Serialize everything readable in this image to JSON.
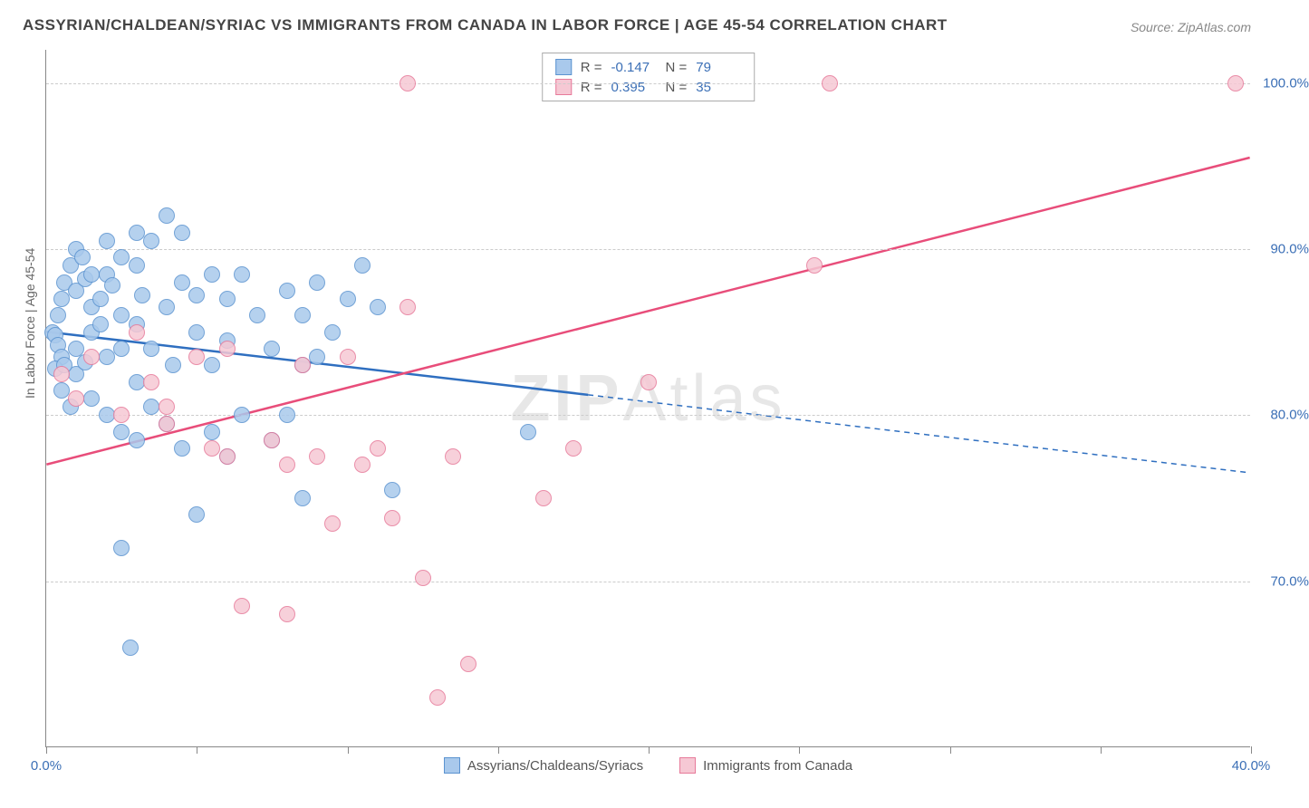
{
  "chart": {
    "type": "scatter-correlation",
    "title": "ASSYRIAN/CHALDEAN/SYRIAC VS IMMIGRANTS FROM CANADA IN LABOR FORCE | AGE 45-54 CORRELATION CHART",
    "source": "Source: ZipAtlas.com",
    "watermark": "ZIPAtlas",
    "ylabel": "In Labor Force | Age 45-54",
    "xlim": [
      0,
      40
    ],
    "ylim": [
      60,
      102
    ],
    "x_ticks": [
      0,
      5,
      10,
      15,
      20,
      25,
      30,
      35,
      40
    ],
    "x_tick_labels": {
      "0": "0.0%",
      "40": "40.0%"
    },
    "y_ticks": [
      70,
      80,
      90,
      100
    ],
    "y_tick_labels": {
      "70": "70.0%",
      "80": "80.0%",
      "90": "90.0%",
      "100": "100.0%"
    },
    "grid_color": "#cccccc",
    "axis_color": "#888888",
    "background_color": "#ffffff",
    "marker_radius": 9,
    "marker_stroke_width": 1.5,
    "line_width": 2.5,
    "label_color": "#3b6fb6",
    "text_color": "#666666",
    "title_color": "#444444",
    "series": [
      {
        "name": "Assyrians/Chaldeans/Syriacs",
        "color_fill": "#a9c9ec",
        "color_stroke": "#5b93d0",
        "line_color": "#2f6fc0",
        "r_label": "R =",
        "r_value": "-0.147",
        "n_label": "N =",
        "n_value": "79",
        "regression": {
          "x1": 0,
          "y1": 85.0,
          "x2": 18,
          "y2": 81.2,
          "x_extend": 40,
          "y_extend": 76.5
        },
        "points": [
          [
            0.2,
            85.0
          ],
          [
            0.3,
            84.8
          ],
          [
            0.4,
            84.2
          ],
          [
            0.5,
            83.5
          ],
          [
            0.4,
            86.0
          ],
          [
            0.5,
            87.0
          ],
          [
            0.6,
            88.0
          ],
          [
            0.8,
            89.0
          ],
          [
            1.0,
            90.0
          ],
          [
            1.2,
            89.5
          ],
          [
            1.0,
            87.5
          ],
          [
            1.3,
            88.2
          ],
          [
            1.5,
            86.5
          ],
          [
            1.5,
            85.0
          ],
          [
            1.8,
            87.0
          ],
          [
            2.0,
            88.5
          ],
          [
            2.2,
            87.8
          ],
          [
            2.5,
            86.0
          ],
          [
            2.5,
            84.0
          ],
          [
            3.0,
            85.5
          ],
          [
            3.0,
            89.0
          ],
          [
            3.5,
            90.5
          ],
          [
            4.0,
            92.0
          ],
          [
            4.5,
            91.0
          ],
          [
            3.0,
            82.0
          ],
          [
            3.5,
            84.0
          ],
          [
            4.0,
            86.5
          ],
          [
            4.5,
            88.0
          ],
          [
            5.0,
            87.2
          ],
          [
            5.0,
            85.0
          ],
          [
            5.5,
            83.0
          ],
          [
            6.0,
            84.5
          ],
          [
            6.0,
            87.0
          ],
          [
            6.5,
            88.5
          ],
          [
            7.0,
            86.0
          ],
          [
            7.5,
            84.0
          ],
          [
            8.0,
            87.5
          ],
          [
            8.5,
            86.0
          ],
          [
            8.5,
            83.0
          ],
          [
            9.0,
            88.0
          ],
          [
            9.5,
            85.0
          ],
          [
            10.0,
            87.0
          ],
          [
            10.5,
            89.0
          ],
          [
            11.0,
            86.5
          ],
          [
            2.0,
            80.0
          ],
          [
            2.5,
            79.0
          ],
          [
            3.0,
            78.5
          ],
          [
            3.5,
            80.5
          ],
          [
            1.5,
            81.0
          ],
          [
            1.0,
            82.5
          ],
          [
            0.8,
            80.5
          ],
          [
            0.5,
            81.5
          ],
          [
            0.3,
            82.8
          ],
          [
            4.0,
            79.5
          ],
          [
            4.5,
            78.0
          ],
          [
            5.5,
            79.0
          ],
          [
            6.0,
            77.5
          ],
          [
            6.5,
            80.0
          ],
          [
            7.5,
            78.5
          ],
          [
            8.0,
            80.0
          ],
          [
            1.0,
            84.0
          ],
          [
            1.3,
            83.2
          ],
          [
            2.5,
            89.5
          ],
          [
            3.0,
            91.0
          ],
          [
            2.0,
            90.5
          ],
          [
            5.0,
            74.0
          ],
          [
            2.5,
            72.0
          ],
          [
            1.8,
            85.5
          ],
          [
            8.5,
            75.0
          ],
          [
            11.5,
            75.5
          ],
          [
            16.0,
            79.0
          ],
          [
            9.0,
            83.5
          ],
          [
            1.5,
            88.5
          ],
          [
            0.6,
            83.0
          ],
          [
            2.8,
            66.0
          ],
          [
            2.0,
            83.5
          ],
          [
            4.2,
            83.0
          ],
          [
            5.5,
            88.5
          ],
          [
            3.2,
            87.2
          ]
        ]
      },
      {
        "name": "Immigrants from Canada",
        "color_fill": "#f6c8d4",
        "color_stroke": "#e77a9a",
        "line_color": "#e84d7a",
        "r_label": "R =",
        "r_value": "0.395",
        "n_label": "N =",
        "n_value": "35",
        "regression": {
          "x1": 0,
          "y1": 77.0,
          "x2": 40,
          "y2": 95.5,
          "x_extend": 40,
          "y_extend": 95.5
        },
        "points": [
          [
            0.5,
            82.5
          ],
          [
            1.0,
            81.0
          ],
          [
            1.5,
            83.5
          ],
          [
            2.5,
            80.0
          ],
          [
            3.5,
            82.0
          ],
          [
            4.0,
            79.5
          ],
          [
            4.0,
            80.5
          ],
          [
            5.0,
            83.5
          ],
          [
            5.5,
            78.0
          ],
          [
            6.0,
            84.0
          ],
          [
            6.0,
            77.5
          ],
          [
            6.5,
            68.5
          ],
          [
            7.5,
            78.5
          ],
          [
            8.0,
            77.0
          ],
          [
            8.0,
            68.0
          ],
          [
            8.5,
            83.0
          ],
          [
            9.0,
            77.5
          ],
          [
            9.5,
            73.5
          ],
          [
            10.0,
            83.5
          ],
          [
            10.5,
            77.0
          ],
          [
            11.0,
            78.0
          ],
          [
            11.5,
            73.8
          ],
          [
            12.0,
            86.5
          ],
          [
            12.0,
            100.0
          ],
          [
            12.5,
            70.2
          ],
          [
            13.0,
            63.0
          ],
          [
            13.5,
            77.5
          ],
          [
            14.0,
            65.0
          ],
          [
            16.5,
            75.0
          ],
          [
            17.5,
            78.0
          ],
          [
            20.0,
            82.0
          ],
          [
            25.5,
            89.0
          ],
          [
            26.0,
            100.0
          ],
          [
            39.5,
            100.0
          ],
          [
            3.0,
            85.0
          ]
        ]
      }
    ],
    "bottom_legend": [
      {
        "label": "Assyrians/Chaldeans/Syriacs",
        "fill": "#a9c9ec",
        "stroke": "#5b93d0"
      },
      {
        "label": "Immigrants from Canada",
        "fill": "#f6c8d4",
        "stroke": "#e77a9a"
      }
    ]
  }
}
